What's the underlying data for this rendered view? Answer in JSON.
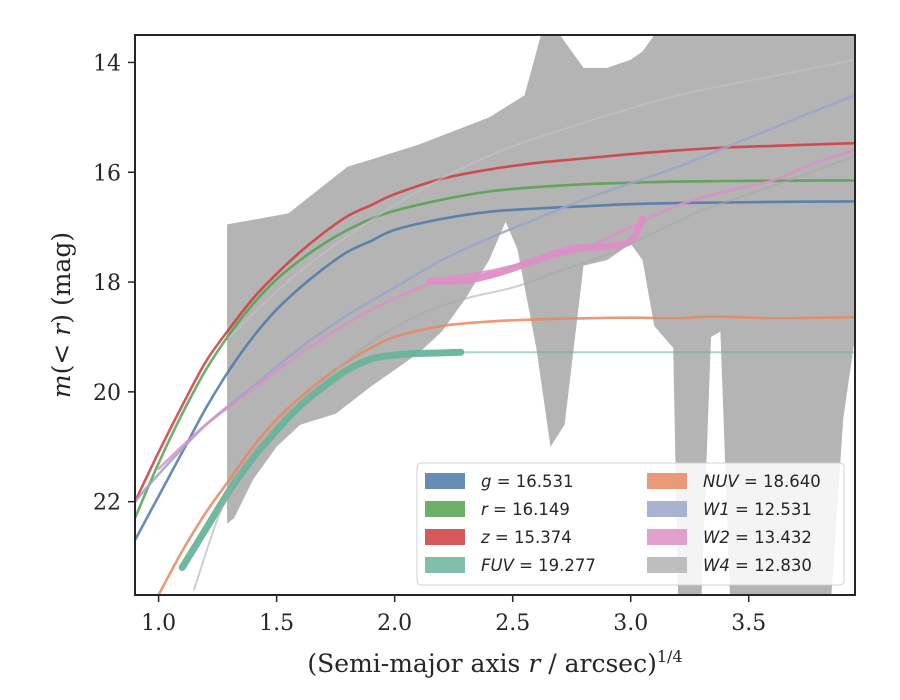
{
  "chart_data": {
    "type": "line",
    "xlabel": "(Semi-major axis r / arcsec)^{1/4}",
    "xlabel_parts": {
      "pre": "(Semi-major axis ",
      "var": "r",
      "mid": " / arcsec)",
      "sup": "1/4"
    },
    "ylabel": "m(< r) (mag)",
    "ylabel_parts": {
      "pre": "m",
      "mid": "(< ",
      "var": "r",
      "post": ") (mag)"
    },
    "xlim": [
      0.9,
      3.95
    ],
    "ylim": [
      23.7,
      13.5
    ],
    "y_inverted": true,
    "xticks": [
      "1.0",
      "1.5",
      "2.0",
      "2.5",
      "3.0",
      "3.5"
    ],
    "yticks": [
      "14",
      "16",
      "18",
      "20",
      "22"
    ],
    "grid": false,
    "legend_position": "lower-right",
    "legend_columns": 2,
    "legend": [
      {
        "band": "g",
        "value": "16.531",
        "color": "#4c78a8"
      },
      {
        "band": "r",
        "value": "16.149",
        "color": "#55a14f"
      },
      {
        "band": "z",
        "value": "15.374",
        "color": "#d03b3d"
      },
      {
        "band": "FUV",
        "value": "19.277",
        "color": "#6ab49b"
      },
      {
        "band": "NUV",
        "value": "18.640",
        "color": "#e8875f"
      },
      {
        "band": "W1",
        "value": "12.531",
        "color": "#9aa6c9"
      },
      {
        "band": "W2",
        "value": "13.432",
        "color": "#dd8fc6"
      },
      {
        "band": "W4",
        "value": "12.830",
        "color": "#b3b3b3"
      }
    ],
    "series": [
      {
        "name": "g",
        "color": "#4c78a8",
        "x": [
          0.9,
          1.0,
          1.1,
          1.2,
          1.3,
          1.4,
          1.5,
          1.6,
          1.7,
          1.8,
          1.9,
          2.0,
          2.2,
          2.4,
          2.6,
          2.8,
          3.0,
          3.2,
          3.4,
          3.6,
          3.8,
          3.95
        ],
        "y": [
          22.7,
          21.9,
          21.1,
          20.3,
          19.6,
          19.0,
          18.5,
          18.1,
          17.75,
          17.45,
          17.25,
          17.05,
          16.85,
          16.72,
          16.66,
          16.62,
          16.58,
          16.56,
          16.55,
          16.54,
          16.535,
          16.53
        ]
      },
      {
        "name": "r",
        "color": "#55a14f",
        "x": [
          0.9,
          1.0,
          1.1,
          1.2,
          1.3,
          1.4,
          1.5,
          1.6,
          1.7,
          1.8,
          1.9,
          2.0,
          2.2,
          2.4,
          2.6,
          2.8,
          3.0,
          3.2,
          3.4,
          3.6,
          3.8,
          3.95
        ],
        "y": [
          22.3,
          21.3,
          20.4,
          19.6,
          18.95,
          18.4,
          17.95,
          17.6,
          17.3,
          17.05,
          16.85,
          16.7,
          16.5,
          16.35,
          16.27,
          16.22,
          16.19,
          16.17,
          16.16,
          16.155,
          16.15,
          16.149
        ]
      },
      {
        "name": "z",
        "color": "#d03b3d",
        "x": [
          0.9,
          1.0,
          1.1,
          1.2,
          1.3,
          1.4,
          1.5,
          1.6,
          1.7,
          1.8,
          1.9,
          2.0,
          2.2,
          2.4,
          2.6,
          2.8,
          3.0,
          3.2,
          3.4,
          3.6,
          3.8,
          3.95
        ],
        "y": [
          22.0,
          21.1,
          20.25,
          19.45,
          18.85,
          18.3,
          17.85,
          17.45,
          17.1,
          16.8,
          16.6,
          16.4,
          16.12,
          15.95,
          15.83,
          15.75,
          15.67,
          15.6,
          15.55,
          15.52,
          15.49,
          15.47
        ]
      },
      {
        "name": "FUV",
        "color": "#6ab49b",
        "thick": true,
        "x": [
          1.1,
          1.2,
          1.3,
          1.4,
          1.5,
          1.6,
          1.7,
          1.8,
          1.9,
          2.0,
          2.1,
          2.2,
          2.28
        ],
        "y": [
          23.2,
          22.5,
          21.8,
          21.2,
          20.7,
          20.25,
          19.9,
          19.6,
          19.4,
          19.33,
          19.3,
          19.29,
          19.28
        ]
      },
      {
        "name": "FUV-ext",
        "color": "#6ab49b",
        "faint": true,
        "x": [
          2.28,
          2.6,
          3.0,
          3.4,
          3.8,
          3.95
        ],
        "y": [
          19.28,
          19.28,
          19.28,
          19.28,
          19.28,
          19.28
        ]
      },
      {
        "name": "NUV",
        "color": "#e8875f",
        "x": [
          1.0,
          1.1,
          1.2,
          1.3,
          1.4,
          1.5,
          1.6,
          1.7,
          1.8,
          1.9,
          2.0,
          2.2,
          2.4,
          2.6,
          2.8,
          3.0,
          3.2,
          3.35,
          3.6,
          3.8,
          3.95
        ],
        "y": [
          23.7,
          22.9,
          22.2,
          21.6,
          21.0,
          20.5,
          20.1,
          19.75,
          19.45,
          19.2,
          19.0,
          18.8,
          18.72,
          18.68,
          18.66,
          18.65,
          18.66,
          18.63,
          18.66,
          18.65,
          18.64
        ]
      },
      {
        "name": "W1",
        "color": "#9aa6c9",
        "x": [
          0.9,
          1.0,
          1.2,
          1.4,
          1.6,
          1.8,
          2.0,
          2.2,
          2.4,
          2.6,
          2.8,
          3.0,
          3.2,
          3.4,
          3.6,
          3.8,
          3.95
        ],
        "y": [
          22.0,
          21.5,
          20.6,
          19.9,
          19.2,
          18.6,
          18.1,
          17.6,
          17.2,
          16.85,
          16.5,
          16.2,
          15.9,
          15.55,
          15.2,
          14.85,
          14.6
        ]
      },
      {
        "name": "W2",
        "color": "#dd8fc6",
        "x": [
          1.0,
          1.2,
          1.4,
          1.6,
          1.8,
          2.0,
          2.2,
          2.4,
          2.6,
          2.8,
          3.0,
          3.2,
          3.4,
          3.6,
          3.8,
          3.95
        ],
        "y": [
          21.4,
          20.6,
          19.95,
          19.3,
          18.75,
          18.3,
          17.95,
          17.8,
          17.6,
          17.4,
          17.0,
          16.6,
          16.35,
          16.15,
          15.8,
          15.6
        ]
      },
      {
        "name": "W2-thick",
        "color": "#dd8fc6",
        "thick": true,
        "x": [
          2.15,
          2.3,
          2.45,
          2.6,
          2.75,
          2.9,
          3.0,
          3.05
        ],
        "y": [
          17.98,
          17.97,
          17.82,
          17.6,
          17.4,
          17.35,
          17.25,
          16.85
        ]
      },
      {
        "name": "W4",
        "color": "#a8a8a8",
        "faint": true,
        "x": [
          1.15,
          1.3,
          1.5,
          1.7,
          1.9,
          2.1,
          2.3,
          2.5,
          2.7,
          2.9,
          3.1,
          3.3,
          3.5,
          3.7,
          3.95
        ],
        "y": [
          23.6,
          21.8,
          20.6,
          19.8,
          19.1,
          18.6,
          18.3,
          18.1,
          17.8,
          17.5,
          17.1,
          16.7,
          16.4,
          16.1,
          15.7
        ]
      },
      {
        "name": "W4-upper",
        "color": "#c4c4c4",
        "faint": true,
        "x": [
          1.3,
          1.6,
          2.0,
          2.4,
          2.8,
          3.2,
          3.6,
          3.95
        ],
        "y": [
          19.0,
          17.8,
          16.6,
          15.7,
          15.1,
          14.6,
          14.25,
          13.95
        ]
      }
    ],
    "band_W4": {
      "x_upper": [
        1.29,
        1.55,
        1.8,
        2.1,
        2.4,
        2.55,
        2.62,
        2.7,
        2.8,
        2.9,
        3.0,
        3.05,
        3.1,
        3.2,
        3.3,
        3.4,
        3.5,
        3.7,
        3.95
      ],
      "y_upper": [
        16.95,
        16.75,
        15.9,
        15.5,
        15.0,
        14.6,
        13.5,
        13.5,
        14.1,
        14.1,
        13.95,
        13.8,
        13.5,
        13.5,
        13.5,
        13.5,
        13.5,
        13.5,
        13.5
      ],
      "x_lower": [
        3.95,
        3.9,
        3.85,
        3.82,
        3.75,
        3.7,
        3.62,
        3.55,
        3.48,
        3.42,
        3.38,
        3.34,
        3.3,
        3.26,
        3.2,
        3.18,
        3.1,
        3.05,
        3.0,
        2.9,
        2.8,
        2.72,
        2.66,
        2.6,
        2.52,
        2.47,
        2.4,
        2.3,
        2.2,
        2.1,
        2.0,
        1.9,
        1.75,
        1.6,
        1.5,
        1.4,
        1.32,
        1.29
      ],
      "y_lower": [
        19.0,
        20.5,
        23.7,
        23.7,
        23.7,
        23.7,
        23.7,
        23.7,
        23.7,
        23.7,
        18.9,
        19.0,
        23.7,
        23.7,
        23.7,
        19.2,
        18.8,
        17.6,
        17.3,
        17.6,
        17.7,
        20.6,
        21.0,
        19.2,
        17.4,
        16.9,
        17.6,
        18.3,
        18.9,
        19.3,
        19.6,
        19.9,
        20.4,
        20.6,
        21.0,
        21.6,
        22.3,
        22.4
      ]
    }
  }
}
